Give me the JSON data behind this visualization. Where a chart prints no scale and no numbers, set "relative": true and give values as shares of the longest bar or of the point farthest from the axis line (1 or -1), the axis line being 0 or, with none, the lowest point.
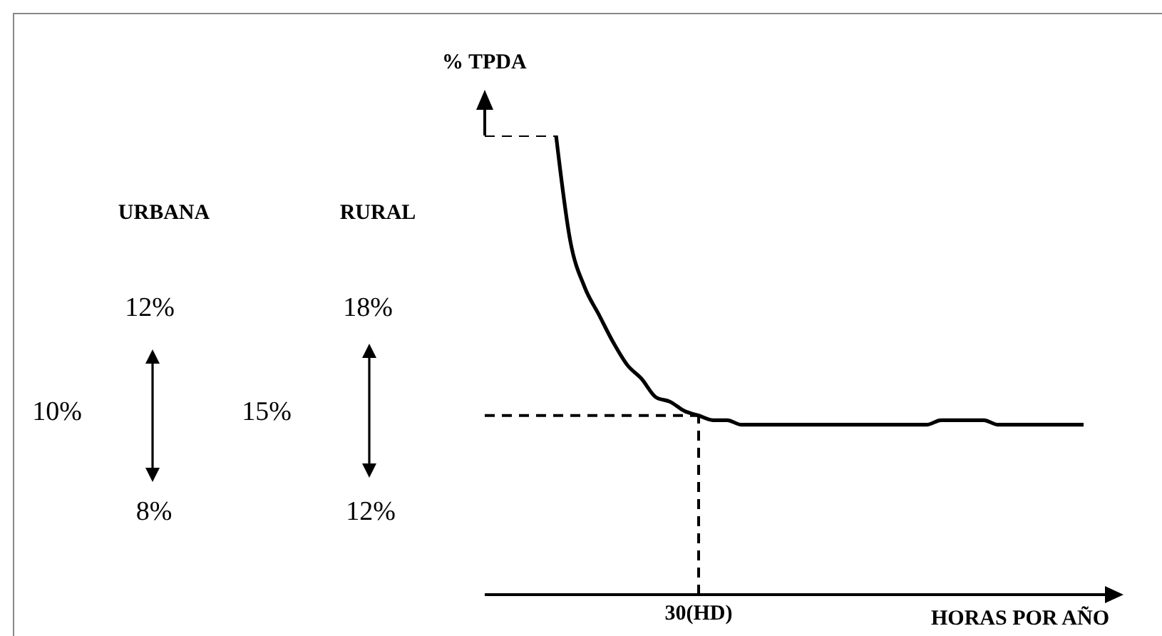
{
  "chart_data": {
    "type": "line",
    "relative": true,
    "xlabel": "HORAS POR AÑO",
    "ylabel": "% TPDA",
    "categories": [
      null,
      null,
      null,
      null,
      null,
      null,
      null,
      null,
      null,
      null,
      null,
      null,
      null,
      null,
      null,
      null,
      null,
      null,
      null,
      null,
      null,
      null,
      null,
      null,
      null,
      null,
      null,
      null,
      null,
      null,
      null,
      null,
      null,
      null,
      null,
      null,
      null,
      null,
      null,
      null,
      null,
      null,
      null,
      null
    ],
    "series": [
      {
        "color": "#000000",
        "values": [
          null,
          null,
          null,
          null,
          null,
          1.0,
          0.77,
          0.67,
          0.61,
          0.55,
          0.5,
          0.47,
          0.43,
          0.42,
          0.4,
          0.39,
          0.38,
          0.38,
          0.37,
          0.37,
          0.37,
          0.37,
          0.37,
          0.37,
          0.37,
          0.37,
          0.37,
          0.37,
          0.37,
          0.37,
          0.37,
          0.37,
          0.38,
          0.38,
          0.38,
          0.38,
          0.37,
          0.37,
          0.37,
          0.37,
          0.37,
          0.37,
          0.37,
          null
        ]
      },
      {
        "color": "#000000",
        "line_style": "dashed",
        "values": [
          1.0,
          1.0,
          1.0,
          1.0,
          1.0,
          1.0,
          null,
          null,
          null,
          null,
          null,
          null,
          null,
          null,
          null,
          null,
          null,
          null,
          null,
          null,
          null,
          null,
          null,
          null,
          null,
          null,
          null,
          null,
          null,
          null,
          null,
          null,
          null,
          null,
          null,
          null,
          null,
          null,
          null,
          null,
          null,
          null,
          null,
          null
        ]
      },
      {
        "color": "#000000",
        "line_style": "dashed",
        "values": [
          0.39,
          0.39,
          0.39,
          0.39,
          0.39,
          0.39,
          0.39,
          0.39,
          0.39,
          0.39,
          0.39,
          0.39,
          0.39,
          0.39,
          0.39,
          0.39,
          null,
          null,
          null,
          null,
          null,
          null,
          null,
          null,
          null,
          null,
          null,
          null,
          null,
          null,
          null,
          null,
          null,
          null,
          null,
          null,
          null,
          null,
          null,
          null,
          null,
          null,
          null,
          null
        ]
      }
    ],
    "annotations": [
      "URBANA",
      "RURAL",
      "12%",
      "18%",
      "10%",
      "15%",
      "8%",
      "12%",
      "30(HD)"
    ],
    "marker": "none",
    "line_style": "solid"
  }
}
